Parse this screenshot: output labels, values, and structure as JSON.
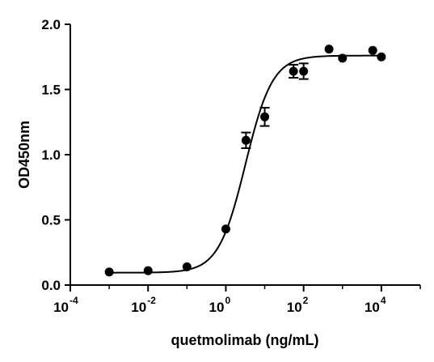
{
  "chart_data": {
    "type": "scatter",
    "xlabel": "quetmolimab (ng/mL)",
    "ylabel": "OD450nm",
    "x_scale": "log10",
    "xlim": [
      0.0001,
      100000
    ],
    "ylim": [
      0,
      2.0
    ],
    "x_ticks": [
      {
        "base": "10",
        "exp": "-4",
        "value": 0.0001
      },
      {
        "base": "10",
        "exp": "-2",
        "value": 0.01
      },
      {
        "base": "10",
        "exp": "0",
        "value": 1
      },
      {
        "base": "10",
        "exp": "2",
        "value": 100
      },
      {
        "base": "10",
        "exp": "4",
        "value": 10000
      }
    ],
    "y_ticks": [
      {
        "label": "0.0",
        "value": 0
      },
      {
        "label": "0.5",
        "value": 0.5
      },
      {
        "label": "1.0",
        "value": 1.0
      },
      {
        "label": "1.5",
        "value": 1.5
      },
      {
        "label": "2.0",
        "value": 2.0
      }
    ],
    "points": [
      {
        "x": 0.001,
        "y": 0.1,
        "err": 0.0
      },
      {
        "x": 0.01,
        "y": 0.11,
        "err": 0.0
      },
      {
        "x": 0.1,
        "y": 0.14,
        "err": 0.0
      },
      {
        "x": 1,
        "y": 0.43,
        "err": 0.0
      },
      {
        "x": 3.3,
        "y": 1.11,
        "err": 0.06
      },
      {
        "x": 10,
        "y": 1.29,
        "err": 0.07
      },
      {
        "x": 55,
        "y": 1.64,
        "err": 0.05
      },
      {
        "x": 100,
        "y": 1.64,
        "err": 0.06
      },
      {
        "x": 450,
        "y": 1.81,
        "err": 0.0
      },
      {
        "x": 1000,
        "y": 1.74,
        "err": 0.0
      },
      {
        "x": 6000,
        "y": 1.8,
        "err": 0.0
      },
      {
        "x": 10000,
        "y": 1.75,
        "err": 0.0
      }
    ],
    "fit": {
      "model": "4PL",
      "bottom": 0.095,
      "top": 1.76,
      "ec50": 3.2,
      "hill": 1.25,
      "x_range": [
        0.001,
        10000
      ]
    },
    "grid": false,
    "legend": "none"
  }
}
